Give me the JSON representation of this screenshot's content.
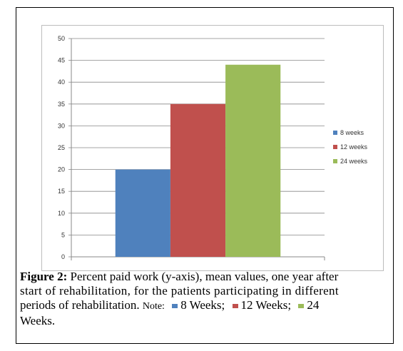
{
  "chart_data": {
    "type": "bar",
    "categories": [
      ""
    ],
    "series": [
      {
        "name": "8 weeks",
        "values": [
          20
        ],
        "color": "#4f81bd"
      },
      {
        "name": "12 weeks",
        "values": [
          35
        ],
        "color": "#c0504d"
      },
      {
        "name": "24 weeks",
        "values": [
          44
        ],
        "color": "#9bbb59"
      }
    ],
    "ylim": [
      0,
      50
    ],
    "yticks": [
      0,
      5,
      10,
      15,
      20,
      25,
      30,
      35,
      40,
      45,
      50
    ],
    "grid": true,
    "legend": "right"
  },
  "caption": {
    "figure_label": "Figure 2:",
    "text_line1": "Percent paid work (y-axis), mean values, one year after",
    "text_line2": "start of rehabilitation, for the patients participating in different",
    "text_line3": "periods of rehabilitation.",
    "note_label": "Note:",
    "legend_items": [
      "8 Weeks;",
      "12 Weeks;",
      "24"
    ],
    "tail": "Weeks."
  }
}
